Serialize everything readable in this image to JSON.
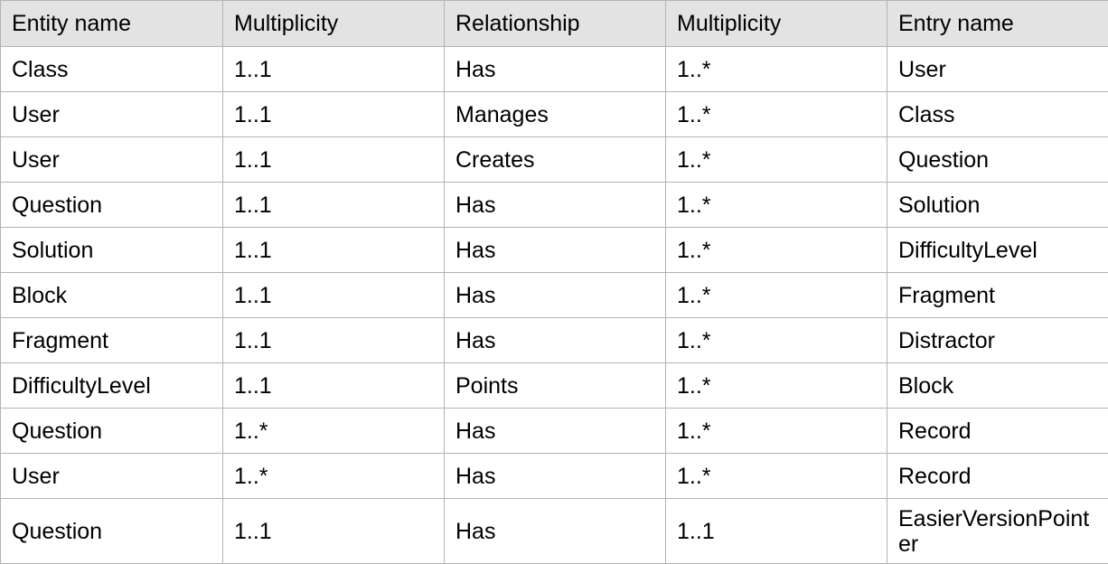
{
  "table": {
    "headers": [
      "Entity name",
      "Multiplicity",
      "Relationship",
      "Multiplicity",
      "Entry name"
    ],
    "rows": [
      [
        "Class",
        "1..1",
        "Has",
        "1..*",
        "User"
      ],
      [
        "User",
        "1..1",
        "Manages",
        "1..*",
        "Class"
      ],
      [
        "User",
        "1..1",
        "Creates",
        "1..*",
        "Question"
      ],
      [
        "Question",
        "1..1",
        "Has",
        "1..*",
        "Solution"
      ],
      [
        "Solution",
        "1..1",
        "Has",
        "1..*",
        "DifficultyLevel"
      ],
      [
        "Block",
        "1..1",
        "Has",
        "1..*",
        "Fragment"
      ],
      [
        "Fragment",
        "1..1",
        "Has",
        "1..*",
        "Distractor"
      ],
      [
        "DifficultyLevel",
        "1..1",
        "Points",
        "1..*",
        "Block"
      ],
      [
        "Question",
        "1..*",
        "Has",
        "1..*",
        "Record"
      ],
      [
        "User",
        "1..*",
        "Has",
        "1..*",
        "Record"
      ],
      [
        "Question",
        "1..1",
        "Has",
        "1..1",
        "EasierVersionPointer"
      ]
    ]
  }
}
